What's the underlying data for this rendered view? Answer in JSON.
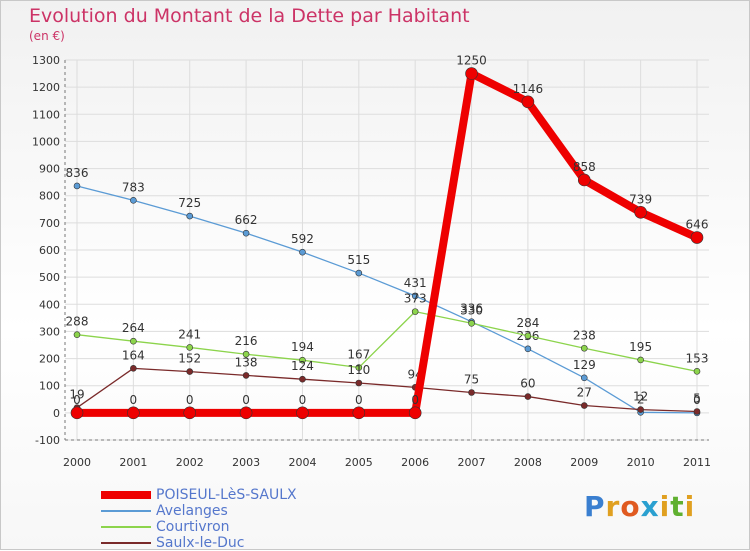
{
  "chart_data": {
    "type": "line",
    "title": "Evolution du Montant de la Dette par Habitant",
    "subtitle": "(en €)",
    "xlabel": "",
    "ylabel": "",
    "ylim": [
      -100,
      1300
    ],
    "yticks": [
      -100,
      0,
      100,
      200,
      300,
      400,
      500,
      600,
      700,
      800,
      900,
      1000,
      1100,
      1200,
      1300
    ],
    "categories": [
      "2000",
      "2001",
      "2002",
      "2003",
      "2004",
      "2005",
      "2006",
      "2007",
      "2008",
      "2009",
      "2010",
      "2011"
    ],
    "grid": true,
    "legend_position": "bottom-left",
    "series": [
      {
        "name": "Avelanges",
        "color": "#5b9bd5",
        "width": 1.3,
        "marker": 3,
        "values": [
          836,
          783,
          725,
          662,
          592,
          515,
          431,
          336,
          236,
          129,
          2,
          0
        ],
        "labels": [
          "836",
          "783",
          "725",
          "662",
          "592",
          "515",
          "431",
          "336",
          "236",
          "129",
          "2",
          "0"
        ]
      },
      {
        "name": "Courtivron",
        "color": "#8cd44c",
        "width": 1.3,
        "marker": 3,
        "values": [
          288,
          264,
          241,
          216,
          194,
          167,
          373,
          330,
          284,
          238,
          195,
          153
        ],
        "labels": [
          "288",
          "264",
          "241",
          "216",
          "194",
          "167",
          "373",
          "330",
          "284",
          "238",
          "195",
          "153"
        ]
      },
      {
        "name": "Saulx-le-Duc",
        "color": "#7a2a2a",
        "width": 1.3,
        "marker": 3,
        "values": [
          19,
          164,
          152,
          138,
          124,
          110,
          94,
          75,
          60,
          27,
          12,
          5
        ],
        "labels": [
          "19",
          "164",
          "152",
          "138",
          "124",
          "110",
          "94",
          "75",
          "60",
          "27",
          "12",
          "5"
        ]
      },
      {
        "name": "POISEUL-LèS-SAULX",
        "color": "#ee0000",
        "width": 8,
        "marker": 6,
        "values": [
          0,
          0,
          0,
          0,
          0,
          0,
          0,
          1250,
          1146,
          858,
          739,
          646
        ],
        "labels": [
          "0",
          "0",
          "0",
          "0",
          "0",
          "0",
          "0",
          "1250",
          "1146",
          "858",
          "739",
          "646"
        ]
      }
    ]
  },
  "legend": [
    {
      "label": "POISEUL-LèS-SAULX",
      "color": "#ee0000",
      "thickness": 8
    },
    {
      "label": "Avelanges",
      "color": "#5b9bd5",
      "thickness": 2
    },
    {
      "label": "Courtivron",
      "color": "#8cd44c",
      "thickness": 2
    },
    {
      "label": "Saulx-le-Duc",
      "color": "#7a2a2a",
      "thickness": 2
    }
  ],
  "logo": {
    "text": "Proxiti",
    "letters": [
      {
        "ch": "P",
        "color": "#3a7fd0"
      },
      {
        "ch": "r",
        "color": "#e0a020"
      },
      {
        "ch": "o",
        "color": "#e05a20"
      },
      {
        "ch": "x",
        "color": "#2aa0d0"
      },
      {
        "ch": "i",
        "color": "#e0a020"
      },
      {
        "ch": "t",
        "color": "#60b030"
      },
      {
        "ch": "i",
        "color": "#e0a020"
      }
    ]
  }
}
